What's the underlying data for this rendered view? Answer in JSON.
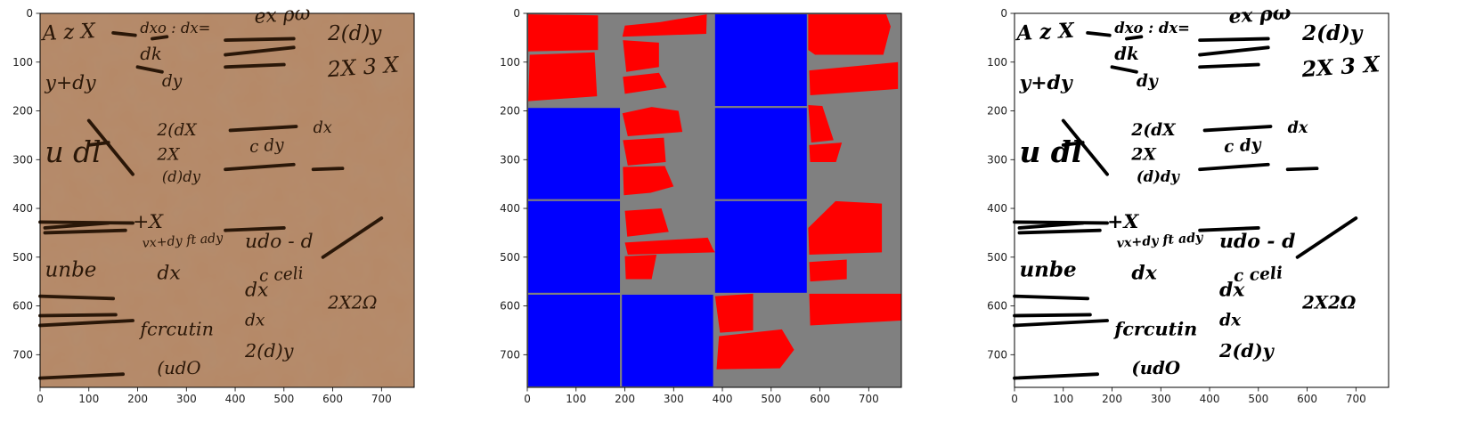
{
  "chart_data": [
    {
      "type": "image",
      "title": "",
      "content": "manuscript photograph (parchment with handwritten math fragments)",
      "xlim": [
        0,
        767
      ],
      "ylim": [
        767,
        0
      ],
      "xticks": [
        0,
        100,
        200,
        300,
        400,
        500,
        600,
        700
      ],
      "yticks": [
        0,
        100,
        200,
        300,
        400,
        500,
        600,
        700
      ],
      "colors": {
        "background": "#b58866"
      },
      "handwriting": [
        "A z X",
        "dxo : dx=",
        "ex ρω",
        "2(d)y",
        "dk",
        "y+dy",
        "dy",
        "2X 3 X",
        "2(dX",
        "dx",
        "u dl",
        "2X",
        "c dy",
        "(d)dy",
        "+X",
        "vx+dy ft ady",
        "udo - d",
        "unbe",
        "dx",
        "dx",
        "c celi",
        "2X2Ω",
        "dx",
        "fcrcutin",
        "2(d)y",
        "(udO"
      ]
    },
    {
      "type": "image",
      "title": "",
      "content": "segmentation mask: blue rectangular tiles and red polygon fragments on gray background",
      "xlim": [
        0,
        767
      ],
      "ylim": [
        767,
        0
      ],
      "xticks": [
        0,
        100,
        200,
        300,
        400,
        500,
        600,
        700
      ],
      "yticks": [
        0,
        100,
        200,
        300,
        400,
        500,
        600,
        700
      ],
      "colors": {
        "background": "#808080",
        "tile": "#0000ff",
        "fragment": "#ff0000"
      },
      "blue_tiles": [
        {
          "x0": 383,
          "y0": 0,
          "x1": 575,
          "y1": 192
        },
        {
          "x0": 0,
          "y0": 192,
          "x1": 192,
          "y1": 383
        },
        {
          "x0": 383,
          "y0": 192,
          "x1": 575,
          "y1": 383
        },
        {
          "x0": 0,
          "y0": 383,
          "x1": 192,
          "y1": 575
        },
        {
          "x0": 383,
          "y0": 383,
          "x1": 575,
          "y1": 575
        },
        {
          "x0": 0,
          "y0": 575,
          "x1": 192,
          "y1": 767
        },
        {
          "x0": 192,
          "y0": 575,
          "x1": 383,
          "y1": 767
        }
      ],
      "red_fragments": [
        [
          [
            2,
            2
          ],
          [
            145,
            4
          ],
          [
            145,
            75
          ],
          [
            2,
            78
          ]
        ],
        [
          [
            5,
            85
          ],
          [
            138,
            80
          ],
          [
            143,
            170
          ],
          [
            2,
            180
          ]
        ],
        [
          [
            200,
            25
          ],
          [
            272,
            18
          ],
          [
            368,
            2
          ],
          [
            367,
            42
          ],
          [
            195,
            48
          ]
        ],
        [
          [
            196,
            55
          ],
          [
            270,
            60
          ],
          [
            270,
            110
          ],
          [
            203,
            120
          ]
        ],
        [
          [
            196,
            130
          ],
          [
            270,
            122
          ],
          [
            286,
            152
          ],
          [
            200,
            165
          ]
        ],
        [
          [
            576,
            2
          ],
          [
            736,
            2
          ],
          [
            745,
            27
          ],
          [
            730,
            85
          ],
          [
            590,
            85
          ],
          [
            576,
            75
          ]
        ],
        [
          [
            578,
            117
          ],
          [
            760,
            100
          ],
          [
            760,
            155
          ],
          [
            580,
            168
          ]
        ],
        [
          [
            195,
            205
          ],
          [
            255,
            192
          ],
          [
            310,
            200
          ],
          [
            318,
            243
          ],
          [
            206,
            252
          ]
        ],
        [
          [
            196,
            260
          ],
          [
            280,
            255
          ],
          [
            284,
            305
          ],
          [
            206,
            312
          ]
        ],
        [
          [
            196,
            315
          ],
          [
            282,
            313
          ],
          [
            300,
            355
          ],
          [
            253,
            368
          ],
          [
            198,
            373
          ]
        ],
        [
          [
            200,
            405
          ],
          [
            275,
            400
          ],
          [
            290,
            448
          ],
          [
            205,
            458
          ]
        ],
        [
          [
            200,
            470
          ],
          [
            370,
            460
          ],
          [
            380,
            482
          ],
          [
            385,
            490
          ],
          [
            206,
            495
          ]
        ],
        [
          [
            200,
            498
          ],
          [
            265,
            495
          ],
          [
            255,
            545
          ],
          [
            202,
            545
          ]
        ],
        [
          [
            576,
            188
          ],
          [
            605,
            190
          ],
          [
            628,
            260
          ],
          [
            582,
            265
          ]
        ],
        [
          [
            578,
            270
          ],
          [
            645,
            265
          ],
          [
            633,
            305
          ],
          [
            580,
            305
          ]
        ],
        [
          [
            576,
            440
          ],
          [
            632,
            385
          ],
          [
            727,
            390
          ],
          [
            727,
            490
          ],
          [
            578,
            495
          ]
        ],
        [
          [
            578,
            510
          ],
          [
            655,
            505
          ],
          [
            655,
            545
          ],
          [
            580,
            550
          ]
        ],
        [
          [
            578,
            575
          ],
          [
            766,
            575
          ],
          [
            766,
            630
          ],
          [
            580,
            640
          ]
        ],
        [
          [
            385,
            580
          ],
          [
            463,
            575
          ],
          [
            463,
            650
          ],
          [
            395,
            655
          ]
        ],
        [
          [
            393,
            662
          ],
          [
            522,
            648
          ],
          [
            547,
            690
          ],
          [
            518,
            728
          ],
          [
            388,
            730
          ]
        ]
      ]
    },
    {
      "type": "image",
      "title": "",
      "content": "binarized manuscript (black ink on white)",
      "xlim": [
        0,
        767
      ],
      "ylim": [
        767,
        0
      ],
      "xticks": [
        0,
        100,
        200,
        300,
        400,
        500,
        600,
        700
      ],
      "yticks": [
        0,
        100,
        200,
        300,
        400,
        500,
        600,
        700
      ],
      "colors": {
        "background": "#ffffff",
        "ink": "#000000"
      },
      "handwriting": [
        "A z X",
        "dxo : dx=",
        "ex ρω",
        "2(d)y",
        "dk",
        "y+dy",
        "dy",
        "2X 3 X",
        "2(dX",
        "dx",
        "u dl",
        "2X",
        "c dy",
        "(d)dy",
        "+X",
        "vx+dy ft ady",
        "udo - d",
        "unbe",
        "dx",
        "dx",
        "c celi",
        "2X2Ω",
        "dx",
        "fcrcutin",
        "2(d)y",
        "(udO"
      ]
    }
  ]
}
